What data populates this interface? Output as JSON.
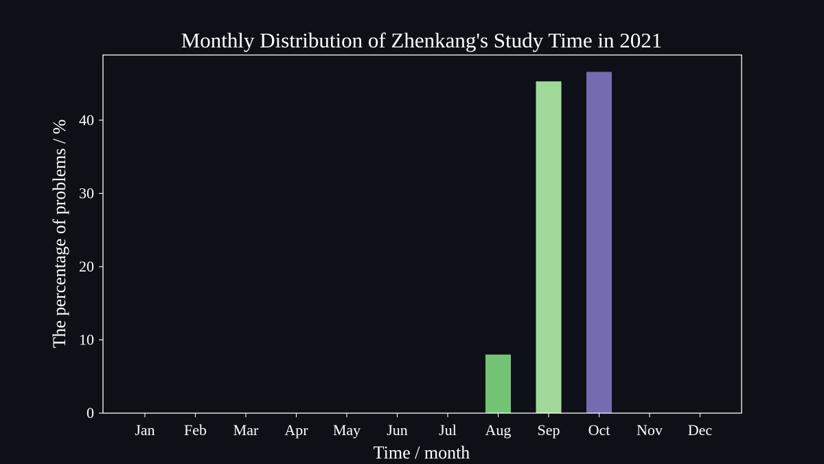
{
  "chart_data": {
    "type": "bar",
    "title": "Monthly Distribution of Zhenkang's Study Time in 2021",
    "xlabel": "Time / month",
    "ylabel": "The percentage of problems / %",
    "categories": [
      "Jan",
      "Feb",
      "Mar",
      "Apr",
      "May",
      "Jun",
      "Jul",
      "Aug",
      "Sep",
      "Oct",
      "Nov",
      "Dec"
    ],
    "values": [
      0,
      0,
      0,
      0,
      0,
      0,
      0,
      8.0,
      45.3,
      46.6,
      0,
      0
    ],
    "bar_colors": [
      "#74c476",
      "#74c476",
      "#74c476",
      "#74c476",
      "#74c476",
      "#74c476",
      "#74c476",
      "#74c476",
      "#a1d99b",
      "#756bb1",
      "#74c476",
      "#74c476"
    ],
    "ylim": [
      0,
      48.9
    ],
    "yticks": [
      0,
      10,
      20,
      30,
      40
    ],
    "grid": false,
    "legend": false
  },
  "theme": {
    "background": "#0d1017",
    "axis_color": "#ffffff",
    "text_color": "#ffffff"
  }
}
